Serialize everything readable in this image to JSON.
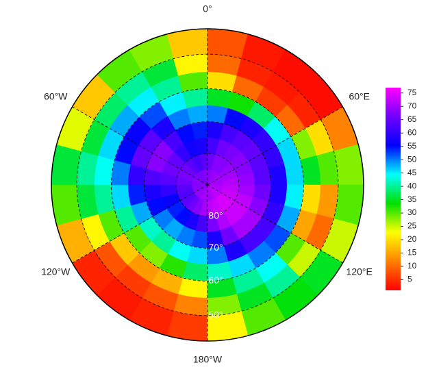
{
  "chart_data": {
    "type": "polar_heatmap",
    "latlim": [
      -90,
      -43
    ],
    "lon_edges": [
      -180,
      -165,
      -150,
      -135,
      -120,
      -105,
      -90,
      -75,
      -60,
      -45,
      -30,
      -15,
      0,
      15,
      30,
      45,
      60,
      75,
      90,
      105,
      120,
      135,
      150,
      165,
      180
    ],
    "lat_edges": [
      -90,
      -85,
      -80,
      -75,
      -70,
      -65,
      -60,
      -55,
      -50,
      -43
    ],
    "values": [
      [
        70,
        70,
        69,
        69,
        68,
        68,
        68,
        68,
        67,
        67,
        67,
        68,
        68,
        69,
        69,
        70,
        70,
        70,
        71,
        71,
        72,
        72,
        71,
        70
      ],
      [
        70,
        68,
        66,
        64,
        63,
        64,
        66,
        67,
        66,
        64,
        62,
        64,
        66,
        68,
        68,
        69,
        70,
        71,
        72,
        73,
        74,
        74,
        73,
        72
      ],
      [
        62,
        58,
        55,
        54,
        56,
        60,
        64,
        66,
        65,
        60,
        57,
        58,
        62,
        66,
        67,
        68,
        68,
        69,
        70,
        72,
        73,
        73,
        71,
        67
      ],
      [
        52,
        50,
        48,
        50,
        55,
        58,
        63,
        68,
        68,
        62,
        55,
        54,
        58,
        62,
        64,
        65,
        64,
        64,
        66,
        68,
        70,
        70,
        66,
        58
      ],
      [
        46,
        44,
        40,
        42,
        48,
        54,
        60,
        65,
        64,
        58,
        50,
        48,
        50,
        55,
        58,
        60,
        60,
        58,
        58,
        60,
        62,
        62,
        58,
        50
      ],
      [
        38,
        32,
        28,
        30,
        40,
        46,
        50,
        55,
        56,
        52,
        45,
        40,
        35,
        33,
        38,
        44,
        46,
        46,
        45,
        48,
        52,
        50,
        46,
        42
      ],
      [
        22,
        16,
        14,
        18,
        30,
        40,
        44,
        46,
        48,
        45,
        40,
        30,
        20,
        10,
        6,
        10,
        28,
        35,
        20,
        15,
        30,
        44,
        40,
        35
      ],
      [
        12,
        8,
        6,
        8,
        22,
        36,
        40,
        36,
        38,
        40,
        36,
        22,
        10,
        4,
        3,
        4,
        20,
        30,
        14,
        10,
        25,
        40,
        35,
        28
      ],
      [
        6,
        4,
        3,
        4,
        16,
        30,
        36,
        24,
        18,
        30,
        28,
        18,
        8,
        3,
        2,
        2,
        12,
        28,
        30,
        25,
        35,
        34,
        30,
        22
      ]
    ],
    "zlim": [
      1,
      77
    ],
    "colormap": [
      "#ff0000",
      "#ff8000",
      "#ffff00",
      "#00e000",
      "#00ffff",
      "#0000ff",
      "#7000ff",
      "#ff00ff"
    ],
    "lonticks": [
      {
        "value": 0,
        "label": "0°"
      },
      {
        "value": 60,
        "label": "60°E"
      },
      {
        "value": 120,
        "label": "120°E"
      },
      {
        "value": 180,
        "label": "180°W"
      },
      {
        "value": -120,
        "label": "120°W"
      },
      {
        "value": -60,
        "label": "60°W"
      }
    ],
    "latticks": [
      {
        "value": -80,
        "label": "80°"
      },
      {
        "value": -70,
        "label": "70°"
      },
      {
        "value": -60,
        "label": "60°"
      },
      {
        "value": -50,
        "label": "50°"
      }
    ],
    "colorbar_ticks": [
      5,
      10,
      15,
      20,
      25,
      30,
      35,
      40,
      45,
      50,
      55,
      60,
      65,
      70,
      75
    ]
  }
}
